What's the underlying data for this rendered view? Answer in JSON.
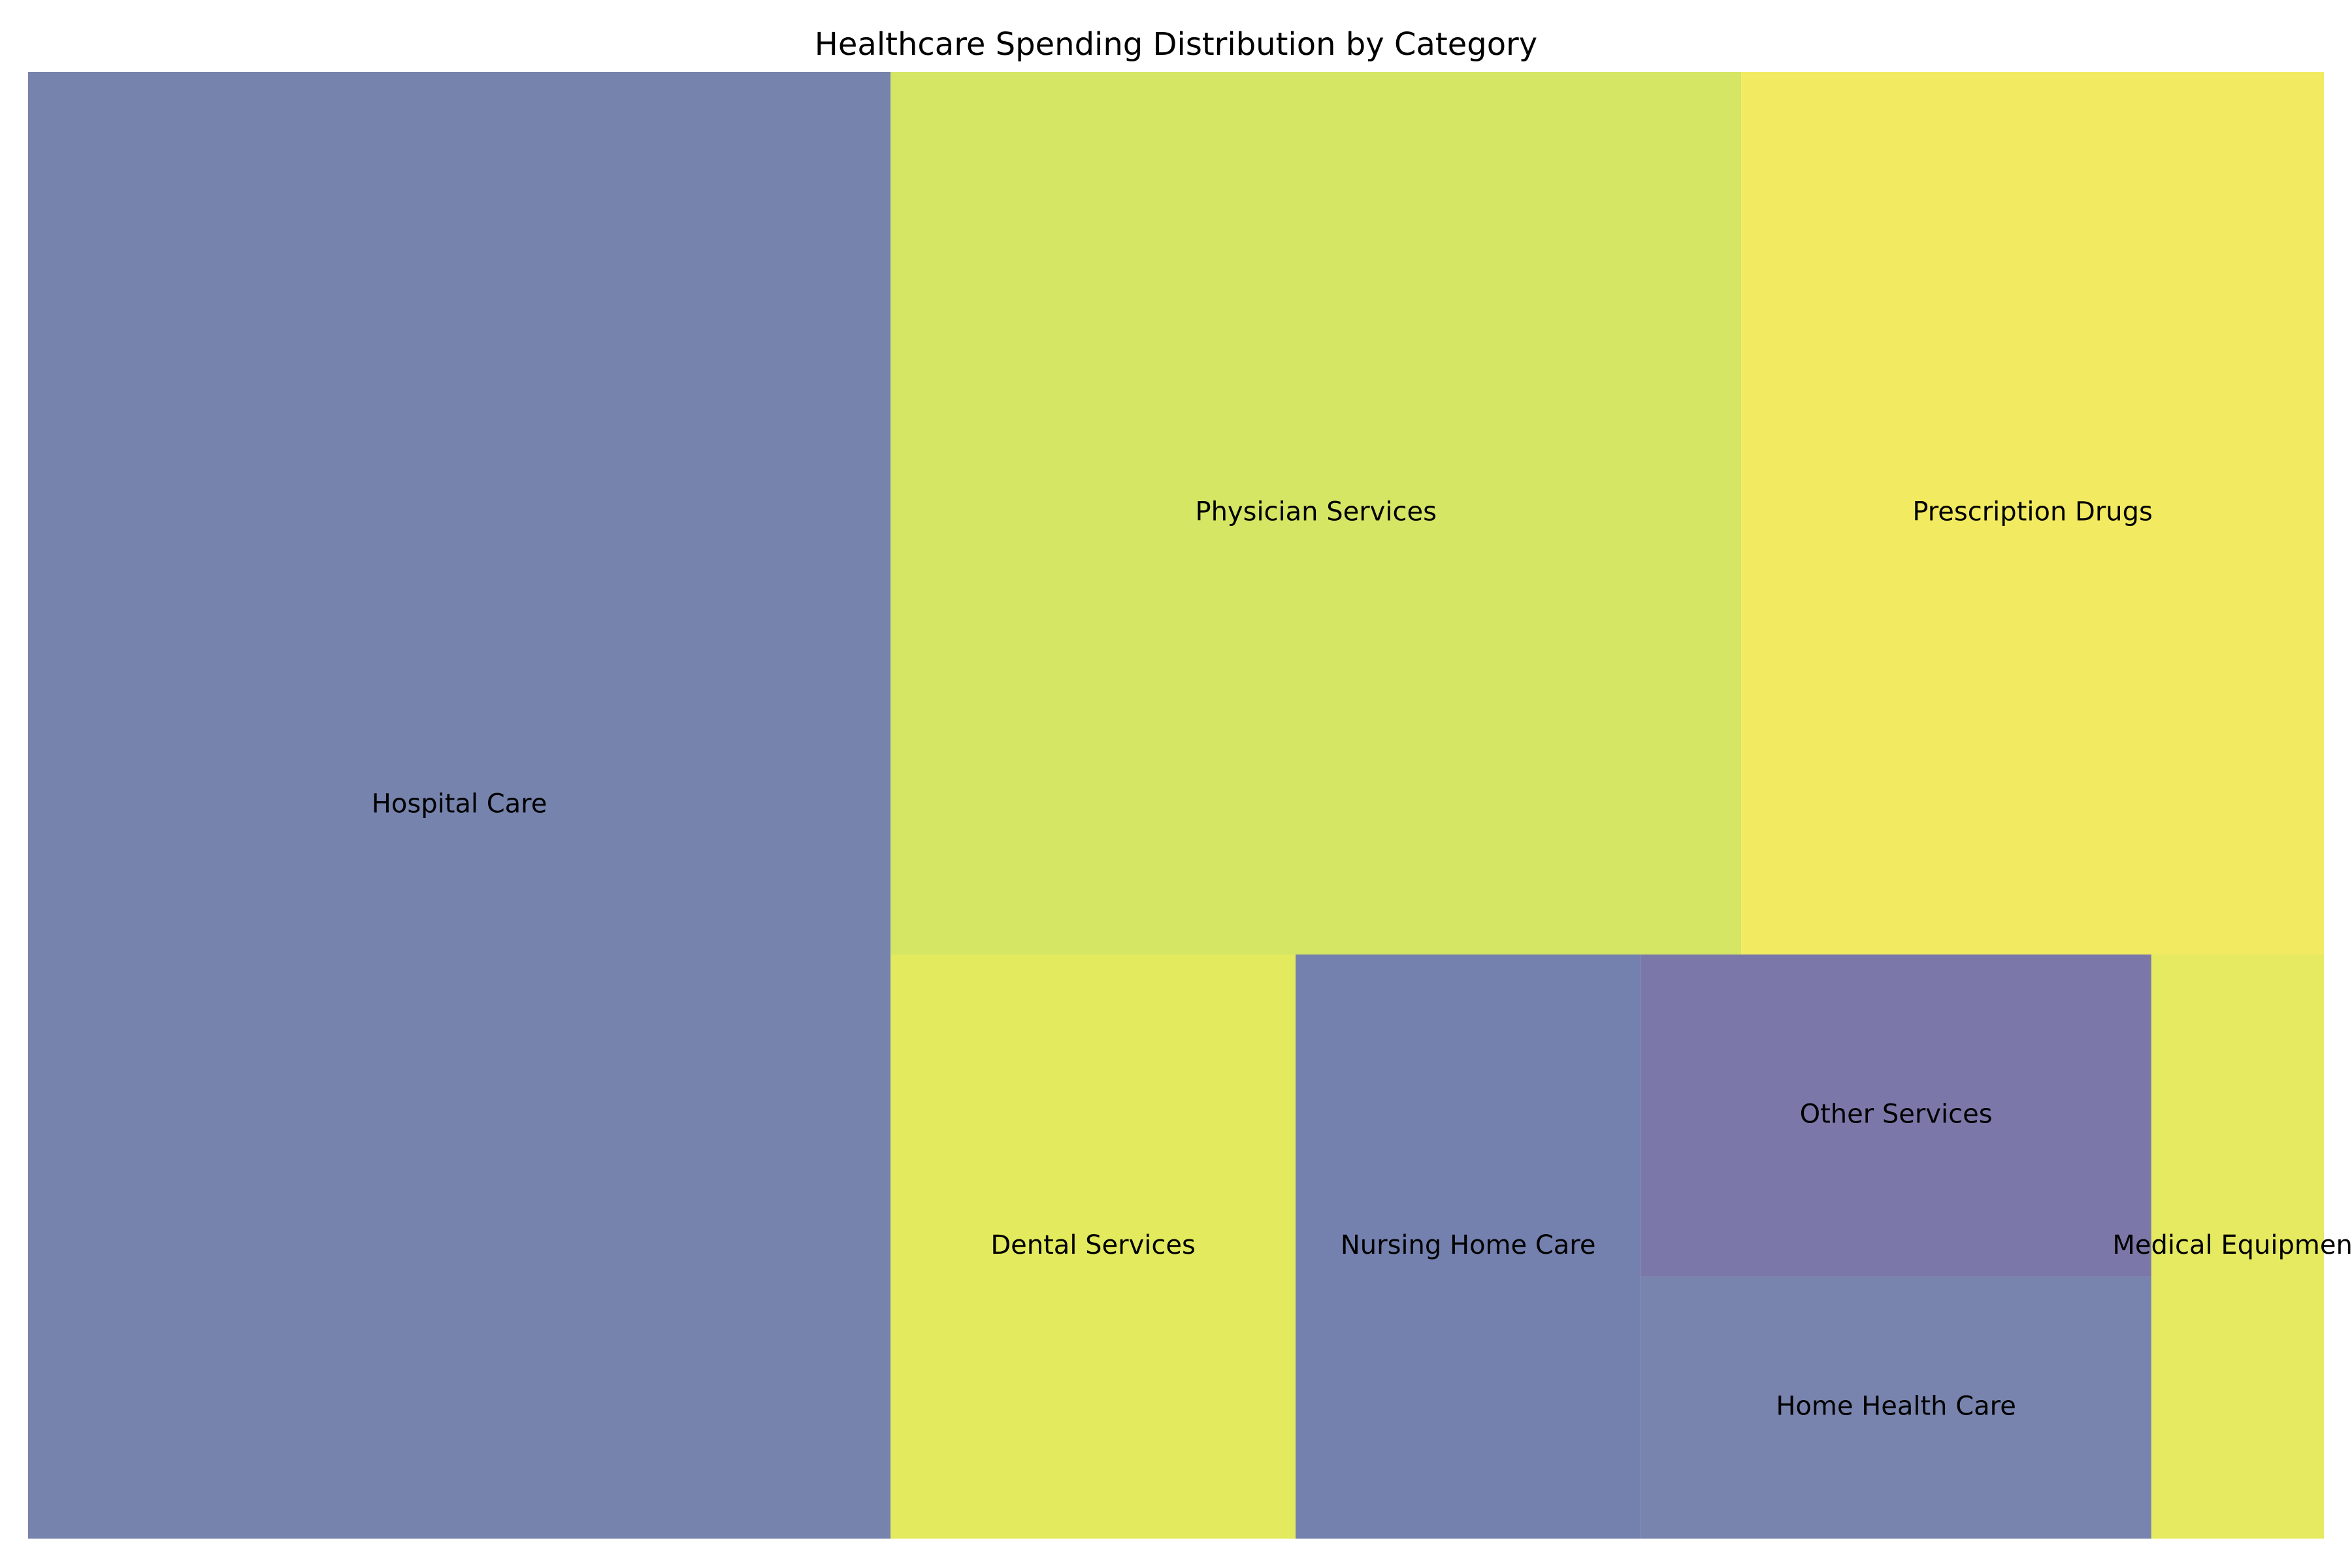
{
  "chart_data": {
    "type": "treemap",
    "title": "Healthcare Spending Distribution by Category",
    "items": [
      {
        "label": "Hospital Care",
        "value": 1230,
        "color": "#7683ad"
      },
      {
        "label": "Physician Services",
        "value": 730,
        "color": "#d4e664"
      },
      {
        "label": "Prescription Drugs",
        "value": 500,
        "color": "#f2ea60"
      },
      {
        "label": "Dental Services",
        "value": 230,
        "color": "#e3ea5e"
      },
      {
        "label": "Nursing Home Care",
        "value": 196,
        "color": "#7480ad"
      },
      {
        "label": "Other Services",
        "value": 160,
        "color": "#7b78a9"
      },
      {
        "label": "Home Health Care",
        "value": 130,
        "color": "#7884ae"
      },
      {
        "label": "Medical Equipment",
        "value": 98,
        "color": "#e6ea60"
      }
    ]
  }
}
